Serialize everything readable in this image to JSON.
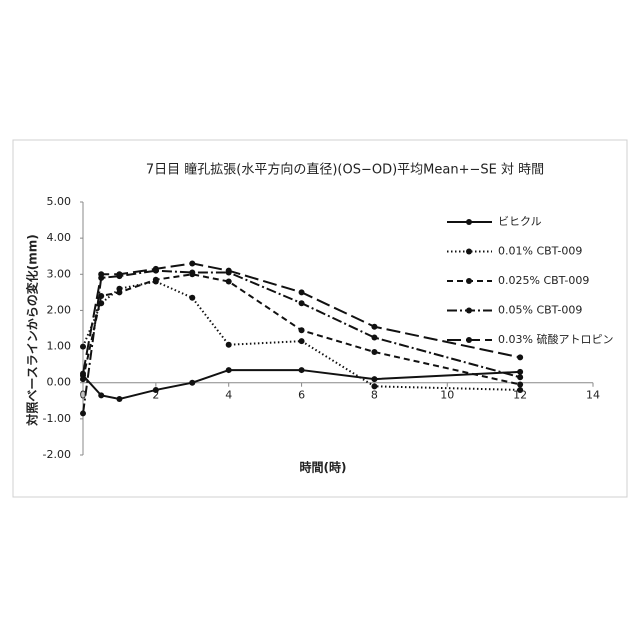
{
  "chart_data": {
    "type": "line",
    "title": "7日目  瞳孔拡張(水平方向の直径)(OS−OD)平均Mean+−SE  対  時間",
    "x_label": "時間(時)",
    "y_label": "対照ベースラインからの変化(mm)",
    "xlim": [
      0,
      14
    ],
    "xticks": [
      0,
      2,
      4,
      6,
      8,
      10,
      12,
      14
    ],
    "ylim": [
      -2,
      5
    ],
    "yticks": [
      {
        "value": -2,
        "label": "-2.00"
      },
      {
        "value": -1,
        "label": "-1.00"
      },
      {
        "value": 0,
        "label": "0.00"
      },
      {
        "value": 1,
        "label": "1.00"
      },
      {
        "value": 2,
        "label": "2.00"
      },
      {
        "value": 3,
        "label": "3.00"
      },
      {
        "value": 4,
        "label": "4.00"
      },
      {
        "value": 5,
        "label": "5.00"
      }
    ],
    "grid": false,
    "legend": "right",
    "x": [
      0,
      0.5,
      1,
      2,
      3,
      4,
      6,
      8,
      12
    ],
    "series": [
      {
        "name": "ビヒクル",
        "color": "#111111",
        "line_style": "solid",
        "values": [
          0.2,
          -0.35,
          -0.45,
          -0.2,
          0.0,
          0.35,
          0.35,
          0.1,
          0.3
        ]
      },
      {
        "name": "0.01% CBT-009",
        "color": "#111111",
        "line_style": "dotted",
        "values": [
          1.0,
          2.2,
          2.6,
          2.8,
          2.35,
          1.05,
          1.15,
          -0.1,
          -0.2
        ]
      },
      {
        "name": "0.025% CBT-009",
        "color": "#111111",
        "line_style": "dashed",
        "values": [
          0.1,
          2.4,
          2.5,
          2.85,
          3.0,
          2.8,
          1.45,
          0.85,
          -0.05
        ]
      },
      {
        "name": "0.05% CBT-009",
        "color": "#111111",
        "line_style": "dashdot",
        "values": [
          -0.85,
          2.9,
          2.95,
          3.1,
          3.05,
          3.05,
          2.2,
          1.25,
          0.15
        ]
      },
      {
        "name": "0.03% 硫酸アトロピン",
        "color": "#111111",
        "line_style": "longdash",
        "values": [
          0.25,
          3.0,
          3.0,
          3.15,
          3.3,
          3.1,
          2.5,
          1.55,
          0.7
        ]
      }
    ]
  }
}
